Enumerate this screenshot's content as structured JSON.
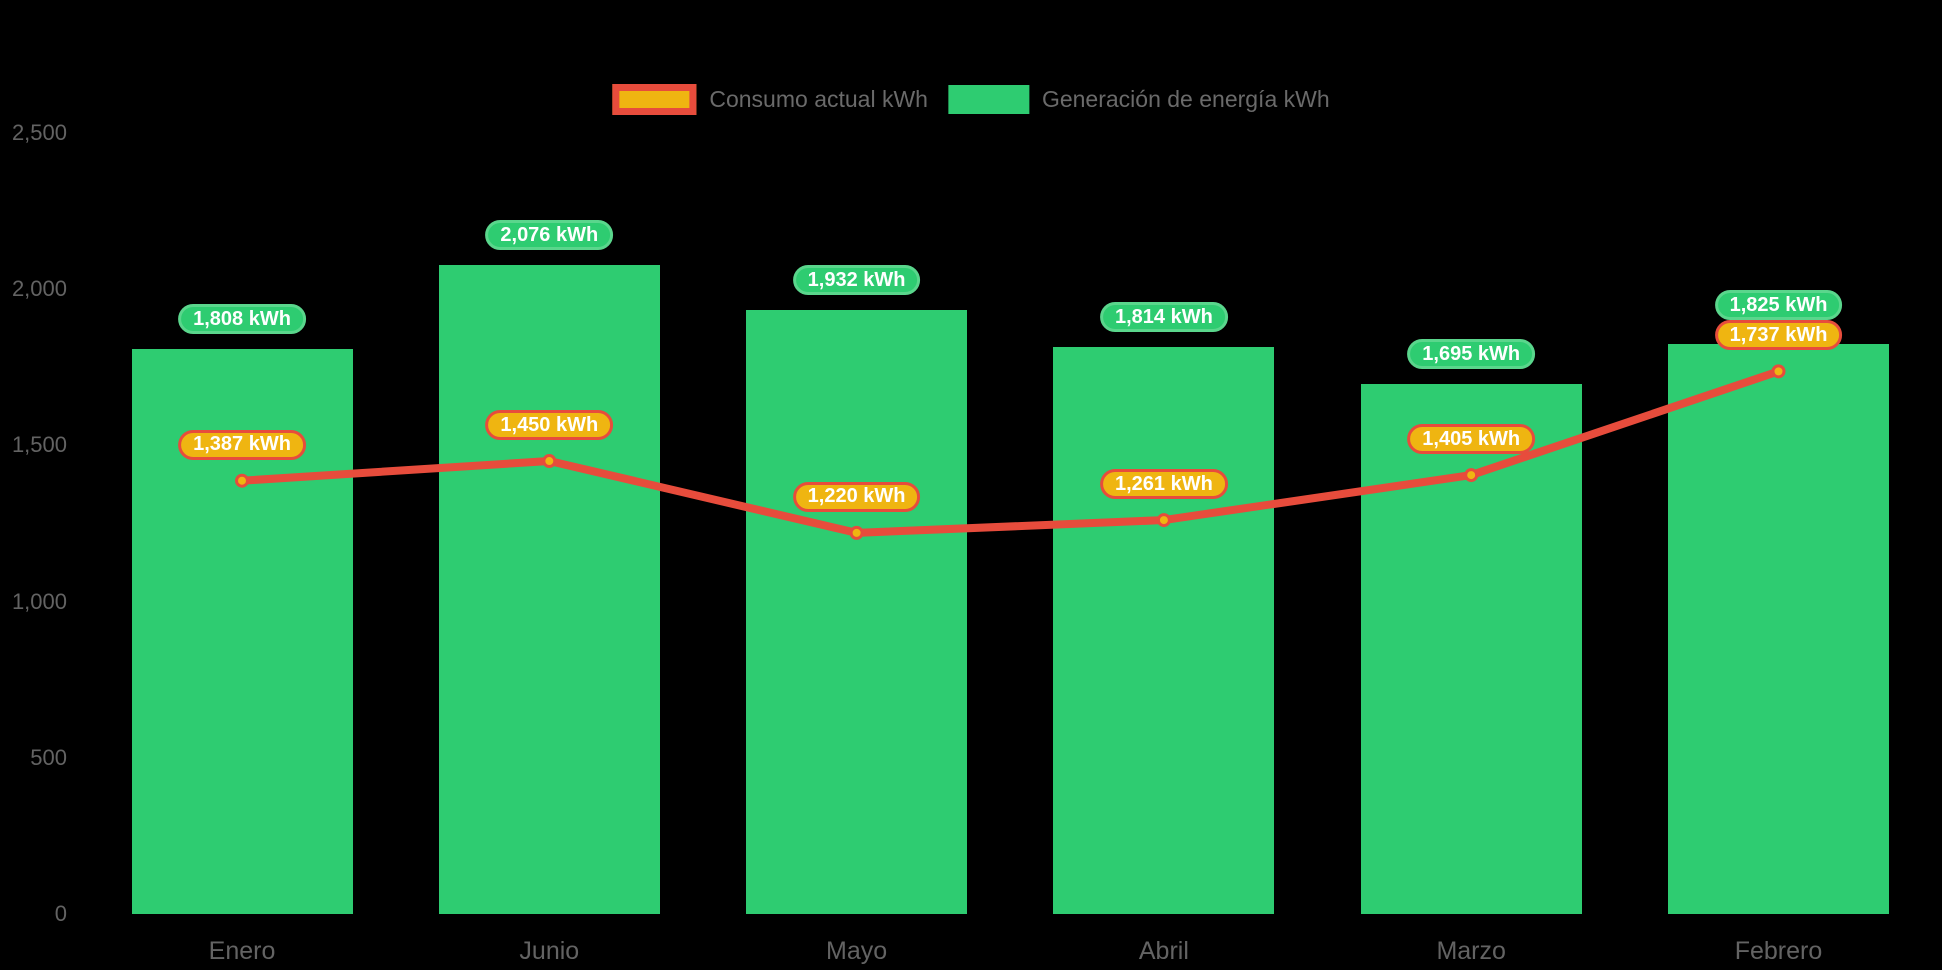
{
  "chart_data": {
    "type": "bar",
    "categories": [
      "Enero",
      "Junio",
      "Mayo",
      "Abril",
      "Marzo",
      "Febrero"
    ],
    "series": [
      {
        "name": "Consumo actual kWh",
        "type": "line",
        "values": [
          1387,
          1450,
          1220,
          1261,
          1405,
          1737
        ],
        "color": "#e74c3c",
        "point_fill": "#efb511",
        "label_bg": "#efb511",
        "label_border": "#e74c3c"
      },
      {
        "name": "Generación de energía kWh",
        "type": "bar",
        "values": [
          1808,
          2076,
          1932,
          1814,
          1695,
          1825
        ],
        "color": "#2ecc71",
        "label_bg": "#2ecc71",
        "label_border": "#5ad68c"
      }
    ],
    "unit": "kWh",
    "value_label_suffix": " kWh",
    "ylim": [
      0,
      2500
    ],
    "y_ticks": [
      0,
      500,
      1000,
      1500,
      2000,
      2500
    ],
    "grid": false,
    "legend_position": "top"
  },
  "legend": {
    "items": [
      {
        "label": "Consumo actual kWh",
        "swatch_fill": "#efb511",
        "swatch_border": "#e74c3c"
      },
      {
        "label": "Generación de energía kWh",
        "swatch_fill": "#2ecc71",
        "swatch_border": ""
      }
    ]
  },
  "colors": {
    "background": "#000000",
    "axis_text": "#636363",
    "legend_text": "#6a6a6a",
    "value_label_text": "#ffffff"
  }
}
